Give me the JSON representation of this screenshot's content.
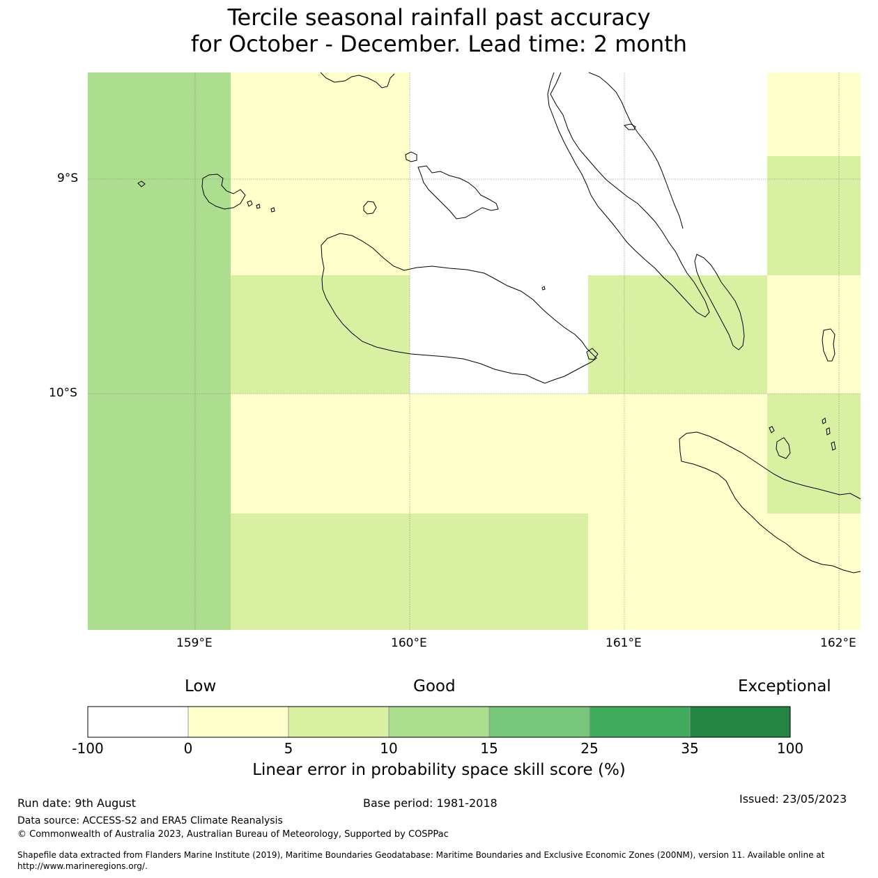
{
  "title_line1": "Tercile seasonal rainfall past accuracy",
  "title_line2": "for October - December. Lead time: 2 month",
  "lat_labels": [
    "9°S",
    "10°S"
  ],
  "lon_labels": [
    "159°E",
    "160°E",
    "161°E",
    "162°E"
  ],
  "legend": {
    "categories": [
      "Low",
      "Good",
      "Exceptional"
    ],
    "ticks": [
      "-100",
      "0",
      "5",
      "10",
      "15",
      "25",
      "35",
      "100"
    ],
    "colors": [
      "#ffffff",
      "#ffffcc",
      "#d9f0a3",
      "#addd8e",
      "#78c679",
      "#41ab5d",
      "#238443"
    ],
    "title": "Linear error in probability space skill score (%)"
  },
  "palette": {
    "white": "#ffffff",
    "yellow": "#ffffcc",
    "light_green": "#d9f0a3",
    "green": "#addd8e",
    "coast": "#000000"
  },
  "footer": {
    "run_date": "Run date: 9th August",
    "base_period": "Base period: 1981-2018",
    "issued": "Issued: 23/05/2023",
    "data_source": "Data source: ACCESS-S2 and ERA5 Climate Reanalysis",
    "copyright": "© Commonwealth of Australia 2023, Australian Bureau of Meteorology, Supported by COSPPac",
    "shapefile_line1": "Shapefile data extracted from Flanders Marine Institute (2019), Maritime Boundaries Geodatabase: Maritime Boundaries and Exclusive Economic Zones (200NM), version 11. Available online at",
    "shapefile_line2": "http://www.marineregions.org/."
  }
}
